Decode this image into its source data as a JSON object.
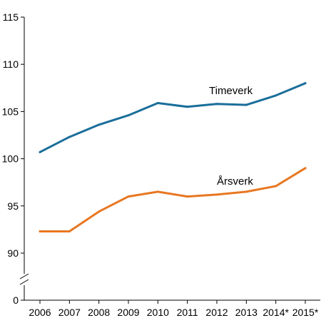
{
  "chart_data": {
    "type": "line",
    "title": "",
    "xlabel": "",
    "ylabel": "",
    "categories": [
      "2006",
      "2007",
      "2008",
      "2009",
      "2010",
      "2011",
      "2012",
      "2013",
      "2014*",
      "2015*"
    ],
    "y_ticks": [
      0,
      90,
      95,
      100,
      105,
      110,
      115
    ],
    "y_tick_labels": [
      "0",
      "90",
      "95",
      "100",
      "105",
      "110",
      "115"
    ],
    "ylim": [
      0,
      115
    ],
    "broken_axis": true,
    "axis_break_range": [
      0,
      90
    ],
    "grid": false,
    "legend": "inline labels",
    "series": [
      {
        "name": "Timeverk",
        "color": "#1a6e9a",
        "values": [
          100.7,
          102.3,
          103.6,
          104.6,
          105.9,
          105.5,
          105.8,
          105.7,
          106.7,
          108.0
        ]
      },
      {
        "name": "Årsverk",
        "color": "#e87722",
        "values": [
          92.3,
          92.3,
          94.4,
          96.0,
          96.5,
          96.0,
          96.2,
          96.5,
          97.1,
          99.0
        ]
      }
    ]
  }
}
